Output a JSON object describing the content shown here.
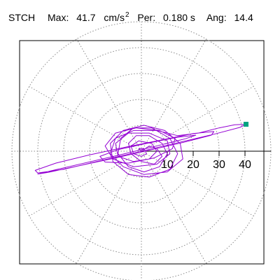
{
  "header": {
    "station": "STCH",
    "max_label": "Max:",
    "max_value": "41.7",
    "max_unit": "cm/s",
    "max_unit_exp": "2",
    "per_label": "Per:",
    "per_value": "0.180 s",
    "ang_label": "Ang:",
    "ang_value": "14.4"
  },
  "chart_data": {
    "type": "polar-orbit",
    "title": "",
    "radial_ticks": [
      10,
      20,
      30,
      40
    ],
    "radial_tick_labels": [
      "10",
      "20",
      "30",
      "40"
    ],
    "radial_max": 50,
    "spoke_angles_deg": [
      0,
      30,
      60,
      90,
      120,
      150,
      180,
      210,
      240,
      270,
      300,
      330
    ],
    "grid": true,
    "grid_color": "#8a8a8a",
    "trace_color": "#9400d3",
    "marker_color": "#00a381",
    "peak_marker": {
      "x": 40.4,
      "y": 10.4
    },
    "trace_points": [
      [
        0,
        0
      ],
      [
        3,
        2
      ],
      [
        6,
        1
      ],
      [
        8,
        -2
      ],
      [
        5,
        -5
      ],
      [
        0,
        -4
      ],
      [
        -4,
        -1
      ],
      [
        -5,
        3
      ],
      [
        -2,
        6
      ],
      [
        3,
        6
      ],
      [
        8,
        3
      ],
      [
        10,
        -1
      ],
      [
        7,
        -6
      ],
      [
        1,
        -8
      ],
      [
        -5,
        -6
      ],
      [
        -9,
        -1
      ],
      [
        -8,
        5
      ],
      [
        -3,
        9
      ],
      [
        4,
        9
      ],
      [
        11,
        5
      ],
      [
        14,
        -1
      ],
      [
        11,
        -7
      ],
      [
        3,
        -10
      ],
      [
        -5,
        -9
      ],
      [
        -11,
        -4
      ],
      [
        -12,
        3
      ],
      [
        -7,
        8
      ],
      [
        1,
        10
      ],
      [
        9,
        8
      ],
      [
        15,
        3
      ],
      [
        16,
        -3
      ],
      [
        10,
        -8
      ],
      [
        1,
        -9
      ],
      [
        -7,
        -6
      ],
      [
        -12,
        -1
      ],
      [
        -10,
        5
      ],
      [
        -3,
        8
      ],
      [
        6,
        8
      ],
      [
        14,
        6
      ],
      [
        22,
        7
      ],
      [
        30,
        9
      ],
      [
        36,
        10.2
      ],
      [
        40.4,
        10.4
      ],
      [
        38,
        9.2
      ],
      [
        29,
        6.8
      ],
      [
        18,
        4.2
      ],
      [
        6,
        1.4
      ],
      [
        -6,
        -1.4
      ],
      [
        -18,
        -4.2
      ],
      [
        -30,
        -7
      ],
      [
        -40,
        -8.4
      ],
      [
        -41,
        -7.4
      ],
      [
        -33,
        -4.6
      ],
      [
        -20,
        -1.4
      ],
      [
        -6,
        1.6
      ],
      [
        8,
        4.4
      ],
      [
        20,
        6.8
      ],
      [
        28,
        7.6
      ],
      [
        27,
        6.2
      ],
      [
        17,
        3.6
      ],
      [
        4,
        0.6
      ],
      [
        -10,
        -2.6
      ],
      [
        -24,
        -5.6
      ],
      [
        -36,
        -8.2
      ],
      [
        -40,
        -8.8
      ],
      [
        -35,
        -7.6
      ],
      [
        -23,
        -4.8
      ],
      [
        -9,
        -1.6
      ],
      [
        5,
        1.8
      ],
      [
        17,
        4.8
      ],
      [
        21,
        6.2
      ],
      [
        14,
        5.4
      ],
      [
        2,
        3
      ],
      [
        -9,
        0.6
      ],
      [
        -16,
        -2
      ],
      [
        -14,
        -4.2
      ],
      [
        -5,
        -4.6
      ],
      [
        5,
        -2.6
      ],
      [
        12,
        1
      ],
      [
        13,
        5
      ],
      [
        7,
        8
      ],
      [
        -2,
        9
      ],
      [
        -10,
        7
      ],
      [
        -14,
        2
      ],
      [
        -11,
        -3
      ],
      [
        -3,
        -6
      ],
      [
        6,
        -5
      ],
      [
        11,
        -1
      ],
      [
        10,
        4
      ],
      [
        3,
        7
      ],
      [
        -5,
        7
      ],
      [
        -10,
        3
      ],
      [
        -9,
        -2
      ],
      [
        -3,
        -4
      ],
      [
        3,
        -3
      ],
      [
        6,
        0
      ],
      [
        4,
        3
      ],
      [
        -1,
        4
      ],
      [
        -4,
        2
      ],
      [
        -3,
        -1
      ],
      [
        0,
        -2
      ],
      [
        2,
        -1
      ],
      [
        1,
        1
      ],
      [
        -1,
        1
      ],
      [
        0,
        0
      ]
    ]
  }
}
